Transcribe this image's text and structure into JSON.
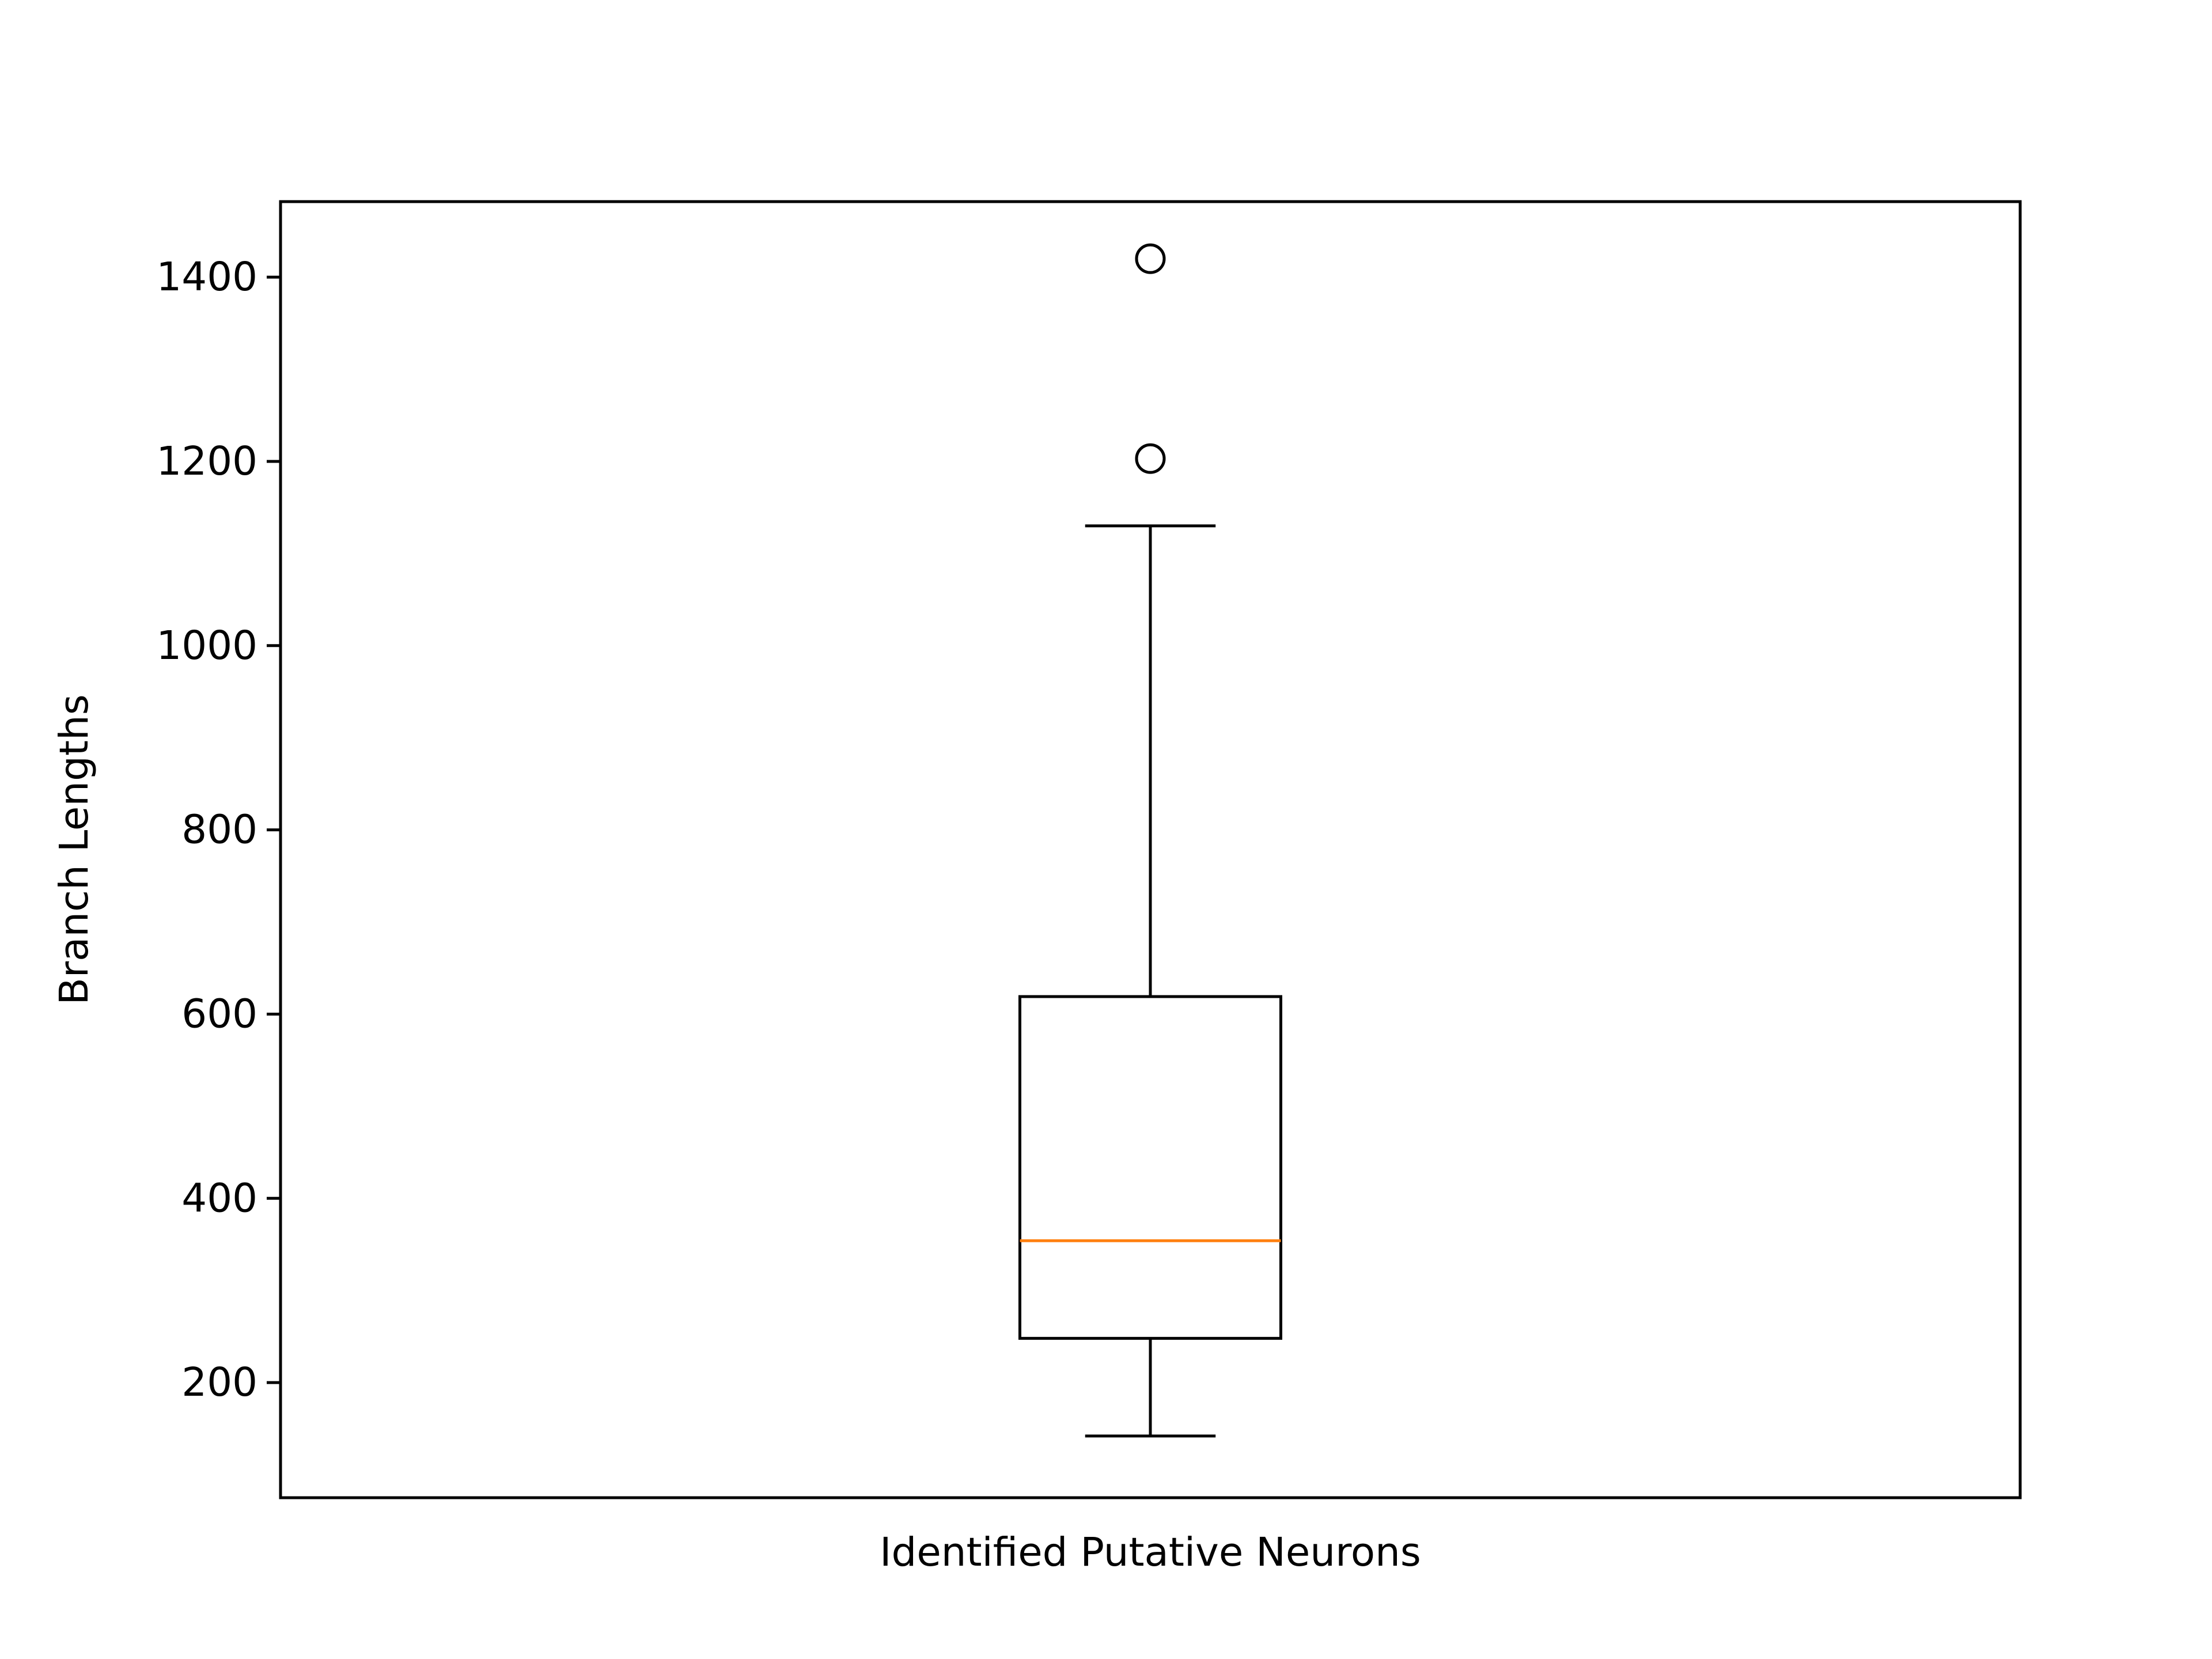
{
  "chart_data": {
    "type": "box",
    "title": "",
    "xlabel": "Identified Putative Neurons",
    "ylabel": "Branch Lengths",
    "ylim": [
      75,
      1482
    ],
    "yticks": [
      200,
      400,
      600,
      800,
      1000,
      1200,
      1400
    ],
    "grid": false,
    "boxes": [
      {
        "whisker_low": 142,
        "q1": 248,
        "median": 354,
        "q3": 619,
        "whisker_high": 1130,
        "outliers": [
          1203,
          1420
        ]
      }
    ],
    "colors": {
      "box": "#000000",
      "median": "#ff7f0e",
      "outlier_edge": "#000000"
    }
  }
}
